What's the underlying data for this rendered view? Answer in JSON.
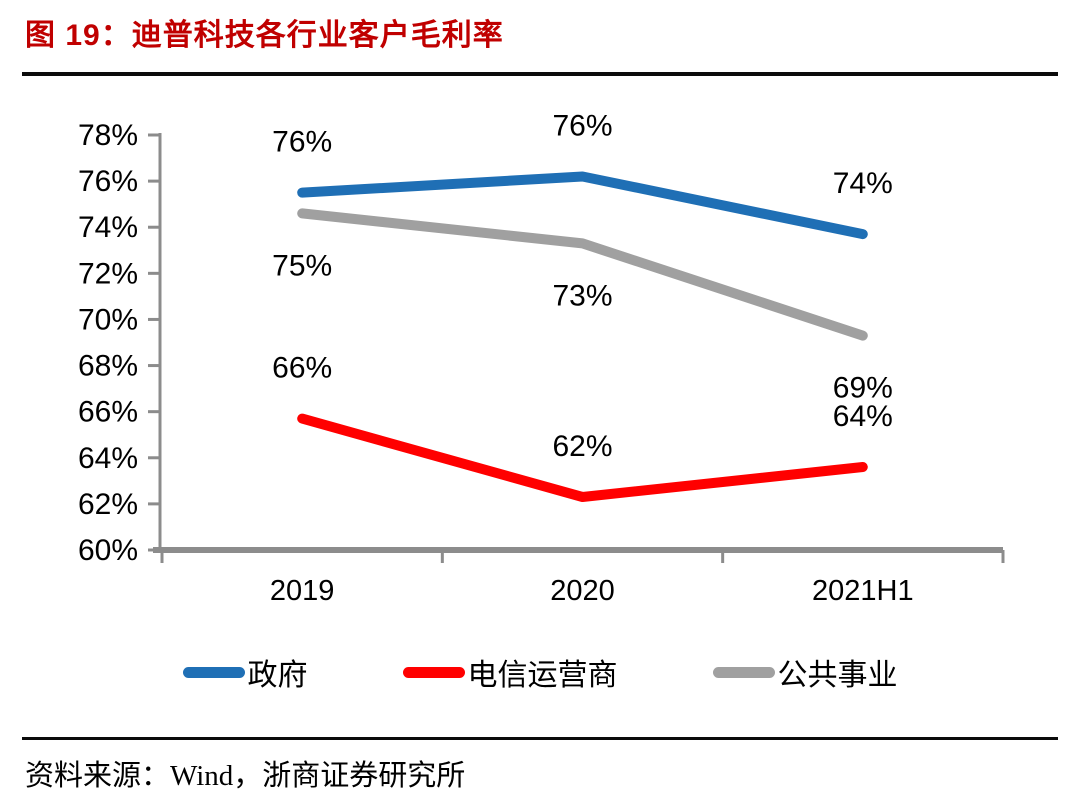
{
  "figure": {
    "title": "图 19：迪普科技各行业客户毛利率",
    "title_color": "#C00000",
    "source": "资料来源：Wind，浙商证券研究所"
  },
  "chart_data": {
    "type": "line",
    "title": "迪普科技各行业客户毛利率",
    "categories": [
      "2019",
      "2020",
      "2021H1"
    ],
    "series": [
      {
        "key": "government",
        "name": "政府",
        "color": "#1F6FB5",
        "values": [
          75.5,
          76.2,
          73.7
        ],
        "point_labels": [
          "76%",
          "76%",
          "74%"
        ],
        "label_position": "above"
      },
      {
        "key": "telecom-operators",
        "name": "电信运营商",
        "color": "#FF0000",
        "values": [
          65.7,
          62.3,
          63.6
        ],
        "point_labels": [
          "66%",
          "62%",
          "64%"
        ],
        "label_position": "above"
      },
      {
        "key": "public-utilities",
        "name": "公共事业",
        "color": "#A0A0A0",
        "values": [
          74.6,
          73.3,
          69.3
        ],
        "point_labels": [
          "75%",
          "73%",
          "69%"
        ],
        "label_position": "below"
      }
    ],
    "ylim": [
      60,
      78
    ],
    "ytick_step": 2,
    "ytick_labels": [
      "60%",
      "62%",
      "64%",
      "66%",
      "68%",
      "70%",
      "72%",
      "74%",
      "76%",
      "78%"
    ],
    "xlabel": "",
    "ylabel": "",
    "axis_color": "#8C8C8C",
    "grid": false,
    "legend_position": "bottom"
  }
}
